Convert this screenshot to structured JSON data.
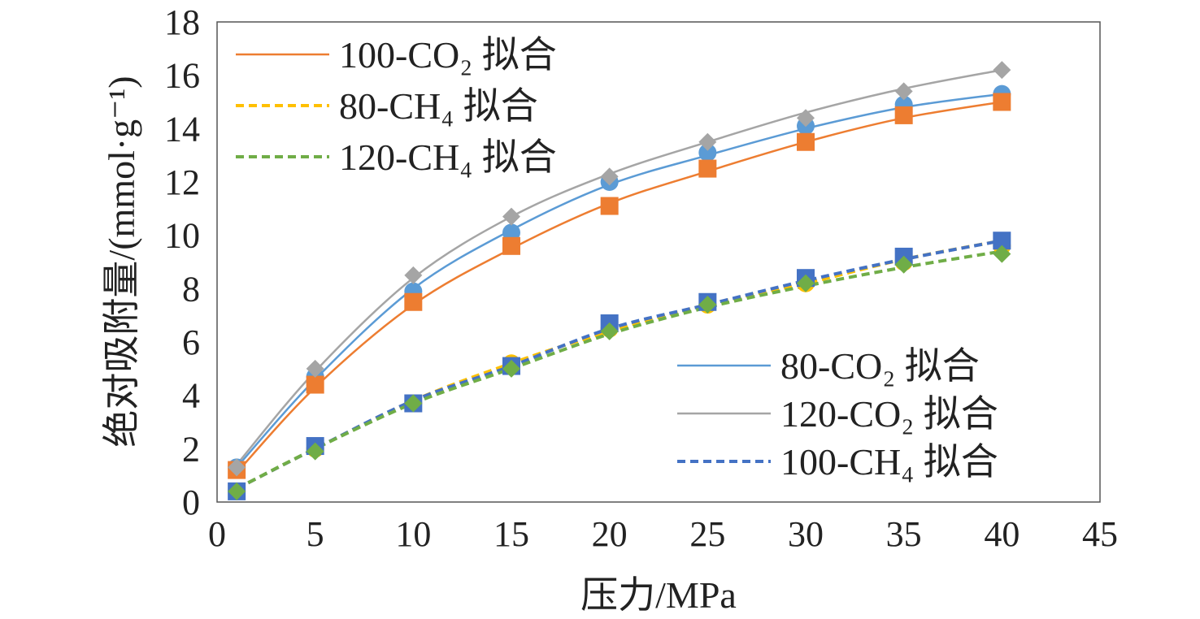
{
  "chart_data": {
    "type": "scatter",
    "xlabel": "压力/MPa",
    "ylabel": "绝对吸附量/(mmol·g⁻¹)",
    "xlim": [
      0,
      45
    ],
    "ylim": [
      0,
      18
    ],
    "xticks": [
      "0",
      "5",
      "10",
      "15",
      "20",
      "25",
      "30",
      "35",
      "40",
      "45"
    ],
    "yticks": [
      "0",
      "2",
      "4",
      "6",
      "8",
      "10",
      "12",
      "14",
      "16",
      "18"
    ],
    "grid": false,
    "x": [
      1,
      5,
      10,
      15,
      20,
      25,
      30,
      35,
      40
    ],
    "series": [
      {
        "gas": "CO2",
        "temp": "80",
        "marker": "circle",
        "color": "#5B9BD5",
        "values": [
          1.3,
          4.7,
          7.9,
          10.1,
          12.0,
          13.1,
          14.1,
          14.9,
          15.3
        ]
      },
      {
        "gas": "CO2",
        "temp": "100",
        "marker": "square",
        "color": "#ED7D31",
        "values": [
          1.2,
          4.4,
          7.5,
          9.6,
          11.1,
          12.5,
          13.5,
          14.5,
          15.0
        ]
      },
      {
        "gas": "CO2",
        "temp": "120",
        "marker": "diamond",
        "color": "#A5A5A5",
        "values": [
          1.3,
          5.0,
          8.5,
          10.7,
          12.2,
          13.5,
          14.4,
          15.4,
          16.2
        ]
      },
      {
        "gas": "CH4",
        "temp": "80",
        "marker": "circle",
        "color": "#FFC000",
        "values": [
          0.4,
          2.0,
          3.7,
          5.2,
          6.5,
          7.4,
          8.2,
          9.0,
          9.6
        ]
      },
      {
        "gas": "CH4",
        "temp": "100",
        "marker": "square",
        "color": "#4472C4",
        "values": [
          0.4,
          2.1,
          3.7,
          5.1,
          6.7,
          7.5,
          8.4,
          9.2,
          9.8
        ]
      },
      {
        "gas": "CH4",
        "temp": "120",
        "marker": "diamond",
        "color": "#70AD47",
        "values": [
          0.4,
          1.9,
          3.7,
          5.0,
          6.4,
          7.4,
          8.2,
          8.9,
          9.3
        ]
      }
    ],
    "fits": [
      {
        "name": "80-CO₂ 拟合",
        "style": "solid",
        "color": "#5B9BD5",
        "values": [
          1.3,
          4.6,
          8.0,
          10.2,
          11.9,
          13.0,
          14.0,
          14.8,
          15.3
        ]
      },
      {
        "name": "100-CO₂ 拟合",
        "style": "solid",
        "color": "#ED7D31",
        "values": [
          1.1,
          4.3,
          7.4,
          9.5,
          11.2,
          12.4,
          13.5,
          14.4,
          15.0
        ]
      },
      {
        "name": "120-CO₂ 拟合",
        "style": "solid",
        "color": "#A5A5A5",
        "values": [
          1.4,
          4.9,
          8.4,
          10.7,
          12.3,
          13.5,
          14.6,
          15.5,
          16.2
        ]
      },
      {
        "name": "80-CH₄ 拟合",
        "style": "dashed",
        "color": "#FFC000",
        "values": [
          0.5,
          2.0,
          3.8,
          5.2,
          6.4,
          7.4,
          8.2,
          9.1,
          9.8
        ]
      },
      {
        "name": "100-CH₄ 拟合",
        "style": "dashed",
        "color": "#4472C4",
        "values": [
          0.5,
          2.0,
          3.8,
          5.1,
          6.5,
          7.4,
          8.3,
          9.1,
          9.8
        ]
      },
      {
        "name": "120-CH₄ 拟合",
        "style": "dashed",
        "color": "#70AD47",
        "values": [
          0.5,
          2.0,
          3.7,
          5.0,
          6.3,
          7.3,
          8.1,
          8.8,
          9.4
        ]
      }
    ],
    "legend": {
      "top_left": [
        "100-CO₂ 拟合",
        "80-CH₄ 拟合",
        "120-CH₄ 拟合"
      ],
      "bottom_right": [
        "80-CO₂ 拟合",
        "120-CO₂ 拟合",
        "100-CH₄ 拟合"
      ]
    }
  }
}
